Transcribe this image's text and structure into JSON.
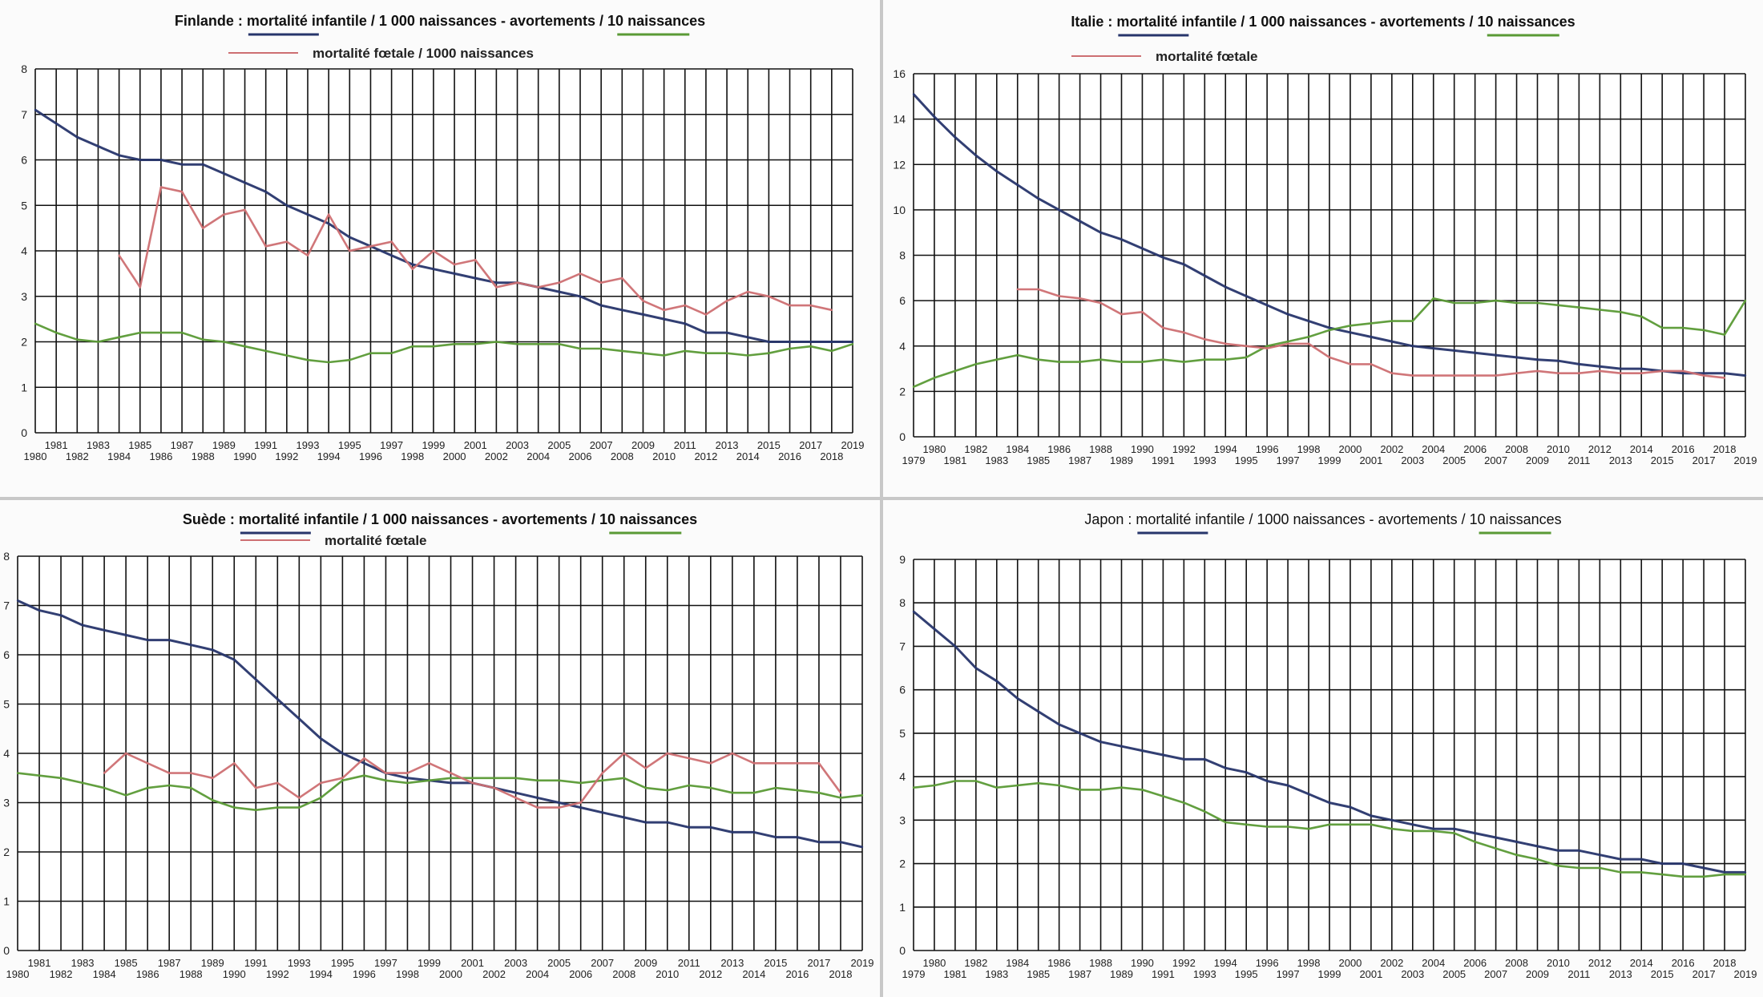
{
  "chart_data": [
    {
      "type": "line",
      "title": "Finlande : mortalité infantile / 1 000 naissances - avortements / 10 naissances",
      "title_parts": {
        "prefix": "Finlande : ",
        "s1": "mortalité infantile / 1 000 naissances",
        "sep": " - ",
        "s2": "avortements / 10 naissances",
        "s3": "mortalité fœtale / 1000 naissances"
      },
      "x_start": 1980,
      "x_end": 2019,
      "ylim": [
        0,
        8
      ],
      "yticks": [
        0,
        1,
        2,
        3,
        4,
        5,
        6,
        7,
        8
      ],
      "grid": true,
      "series": [
        {
          "name": "mortalité infantile / 1 000 naissances",
          "color": "#27356b",
          "x_start": 1980,
          "values": [
            7.1,
            6.8,
            6.5,
            6.3,
            6.1,
            6.0,
            6.0,
            5.9,
            5.9,
            5.7,
            5.5,
            5.3,
            5.0,
            4.8,
            4.6,
            4.3,
            4.1,
            3.9,
            3.7,
            3.6,
            3.5,
            3.4,
            3.3,
            3.3,
            3.2,
            3.1,
            3.0,
            2.8,
            2.7,
            2.6,
            2.5,
            2.4,
            2.2,
            2.2,
            2.1,
            2.0,
            2.0,
            2.0,
            2.0,
            2.0
          ]
        },
        {
          "name": "avortements / 10 naissances",
          "color": "#5a9a35",
          "x_start": 1980,
          "values": [
            2.4,
            2.2,
            2.05,
            2.0,
            2.1,
            2.2,
            2.2,
            2.2,
            2.05,
            2.0,
            1.9,
            1.8,
            1.7,
            1.6,
            1.55,
            1.6,
            1.75,
            1.75,
            1.9,
            1.9,
            1.95,
            1.95,
            2.0,
            1.95,
            1.95,
            1.95,
            1.85,
            1.85,
            1.8,
            1.75,
            1.7,
            1.8,
            1.75,
            1.75,
            1.7,
            1.75,
            1.85,
            1.9,
            1.8,
            1.95
          ]
        },
        {
          "name": "mortalité fœtale / 1000 naissances",
          "color": "#cd6f72",
          "x_start": 1984,
          "values": [
            3.9,
            3.2,
            5.4,
            5.3,
            4.5,
            4.8,
            4.9,
            4.1,
            4.2,
            3.9,
            4.8,
            4.0,
            4.1,
            4.2,
            3.6,
            4.0,
            3.7,
            3.8,
            3.2,
            3.3,
            3.2,
            3.3,
            3.5,
            3.3,
            3.4,
            2.9,
            2.7,
            2.8,
            2.6,
            2.9,
            3.1,
            3.0,
            2.8,
            2.8,
            2.7
          ]
        }
      ]
    },
    {
      "type": "line",
      "title": "Italie : mortalité infantile / 1 000 naissances - avortements / 10 naissances",
      "title_parts": {
        "prefix": "Italie : ",
        "s1": "mortalité infantile / 1 000 naissances",
        "sep": " - ",
        "s2": "avortements / 10 naissances",
        "s3": "mortalité fœtale"
      },
      "x_start": 1979,
      "x_end": 2019,
      "ylim": [
        0,
        16
      ],
      "yticks": [
        0,
        2,
        4,
        6,
        8,
        10,
        12,
        14,
        16
      ],
      "grid": true,
      "series": [
        {
          "name": "mortalité infantile / 1 000 naissances",
          "color": "#27356b",
          "x_start": 1979,
          "values": [
            15.1,
            14.1,
            13.2,
            12.4,
            11.7,
            11.1,
            10.5,
            10.0,
            9.5,
            9.0,
            8.7,
            8.3,
            7.9,
            7.6,
            7.1,
            6.6,
            6.2,
            5.8,
            5.4,
            5.1,
            4.8,
            4.6,
            4.4,
            4.2,
            4.0,
            3.9,
            3.8,
            3.7,
            3.6,
            3.5,
            3.4,
            3.35,
            3.2,
            3.1,
            3.0,
            3.0,
            2.9,
            2.8,
            2.8,
            2.8,
            2.7
          ]
        },
        {
          "name": "avortements / 10 naissances",
          "color": "#5a9a35",
          "x_start": 1979,
          "values": [
            2.2,
            2.6,
            2.9,
            3.2,
            3.4,
            3.6,
            3.4,
            3.3,
            3.3,
            3.4,
            3.3,
            3.3,
            3.4,
            3.3,
            3.4,
            3.4,
            3.5,
            4.0,
            4.2,
            4.4,
            4.7,
            4.9,
            5.0,
            5.1,
            5.1,
            6.1,
            5.9,
            5.9,
            6.0,
            5.9,
            5.9,
            5.8,
            5.7,
            5.6,
            5.5,
            5.3,
            4.8,
            4.8,
            4.7,
            4.5,
            6.0
          ]
        },
        {
          "name": "mortalité fœtale",
          "color": "#cd6f72",
          "x_start": 1984,
          "values": [
            6.5,
            6.5,
            6.2,
            6.1,
            5.9,
            5.4,
            5.5,
            4.8,
            4.6,
            4.3,
            4.1,
            4.0,
            3.9,
            4.1,
            4.1,
            3.5,
            3.2,
            3.2,
            2.8,
            2.7,
            2.7,
            2.7,
            2.7,
            2.7,
            2.8,
            2.9,
            2.8,
            2.8,
            2.9,
            2.8,
            2.8,
            2.9,
            2.9,
            2.7,
            2.6
          ]
        }
      ]
    },
    {
      "type": "line",
      "title": "Suède : mortalité infantile / 1 000 naissances - avortements / 10 naissances",
      "title_parts": {
        "prefix": "Suède : ",
        "s1": "mortalité infantile / 1 000 naissances",
        "sep": " - ",
        "s2": "avortements / 10 naissances",
        "s3": "mortalité fœtale"
      },
      "x_start": 1980,
      "x_end": 2019,
      "ylim": [
        0,
        8
      ],
      "yticks": [
        0,
        1,
        2,
        3,
        4,
        5,
        6,
        7,
        8
      ],
      "grid": true,
      "series": [
        {
          "name": "mortalité infantile / 1 000 naissances",
          "color": "#27356b",
          "x_start": 1980,
          "values": [
            7.1,
            6.9,
            6.8,
            6.6,
            6.5,
            6.4,
            6.3,
            6.3,
            6.2,
            6.1,
            5.9,
            5.5,
            5.1,
            4.7,
            4.3,
            4.0,
            3.8,
            3.6,
            3.5,
            3.45,
            3.4,
            3.4,
            3.3,
            3.2,
            3.1,
            3.0,
            2.9,
            2.8,
            2.7,
            2.6,
            2.6,
            2.5,
            2.5,
            2.4,
            2.4,
            2.3,
            2.3,
            2.2,
            2.2,
            2.1
          ]
        },
        {
          "name": "avortements / 10 naissances",
          "color": "#5a9a35",
          "x_start": 1980,
          "values": [
            3.6,
            3.55,
            3.5,
            3.4,
            3.3,
            3.15,
            3.3,
            3.35,
            3.3,
            3.05,
            2.9,
            2.85,
            2.9,
            2.9,
            3.1,
            3.45,
            3.55,
            3.45,
            3.4,
            3.45,
            3.5,
            3.5,
            3.5,
            3.5,
            3.45,
            3.45,
            3.4,
            3.45,
            3.5,
            3.3,
            3.25,
            3.35,
            3.3,
            3.2,
            3.2,
            3.3,
            3.25,
            3.2,
            3.1,
            3.15
          ]
        },
        {
          "name": "mortalité fœtale",
          "color": "#cd6f72",
          "x_start": 1984,
          "values": [
            3.6,
            4.0,
            3.8,
            3.6,
            3.6,
            3.5,
            3.8,
            3.3,
            3.4,
            3.1,
            3.4,
            3.5,
            3.9,
            3.6,
            3.6,
            3.8,
            3.6,
            3.4,
            3.3,
            3.1,
            2.9,
            2.9,
            3.0,
            3.6,
            4.0,
            3.7,
            4.0,
            3.9,
            3.8,
            4.0,
            3.8,
            3.8,
            3.8,
            3.8,
            3.2
          ]
        }
      ]
    },
    {
      "type": "line",
      "title": "Japon : mortalité infantile / 1000 naissances - avortements / 10 naissances",
      "title_parts": {
        "prefix": "Japon : ",
        "s1": "mortalité infantile / 1000 naissances",
        "sep": " - ",
        "s2": "avortements / 10 naissances",
        "s3": ""
      },
      "x_start": 1979,
      "x_end": 2019,
      "ylim": [
        0,
        9
      ],
      "yticks": [
        0,
        1,
        2,
        3,
        4,
        5,
        6,
        7,
        8,
        9
      ],
      "grid": true,
      "series": [
        {
          "name": "mortalité infantile / 1000 naissances",
          "color": "#27356b",
          "x_start": 1979,
          "values": [
            7.8,
            7.4,
            7.0,
            6.5,
            6.2,
            5.8,
            5.5,
            5.2,
            5.0,
            4.8,
            4.7,
            4.6,
            4.5,
            4.4,
            4.4,
            4.2,
            4.1,
            3.9,
            3.8,
            3.6,
            3.4,
            3.3,
            3.1,
            3.0,
            2.9,
            2.8,
            2.8,
            2.7,
            2.6,
            2.5,
            2.4,
            2.3,
            2.3,
            2.2,
            2.1,
            2.1,
            2.0,
            2.0,
            1.9,
            1.8,
            1.8
          ]
        },
        {
          "name": "avortements / 10 naissances",
          "color": "#5a9a35",
          "x_start": 1979,
          "values": [
            3.75,
            3.8,
            3.9,
            3.9,
            3.75,
            3.8,
            3.85,
            3.8,
            3.7,
            3.7,
            3.75,
            3.7,
            3.55,
            3.4,
            3.2,
            2.95,
            2.9,
            2.85,
            2.85,
            2.8,
            2.9,
            2.9,
            2.9,
            2.8,
            2.75,
            2.75,
            2.7,
            2.5,
            2.35,
            2.2,
            2.1,
            1.95,
            1.9,
            1.9,
            1.8,
            1.8,
            1.75,
            1.7,
            1.7,
            1.75,
            1.75
          ]
        }
      ]
    }
  ]
}
